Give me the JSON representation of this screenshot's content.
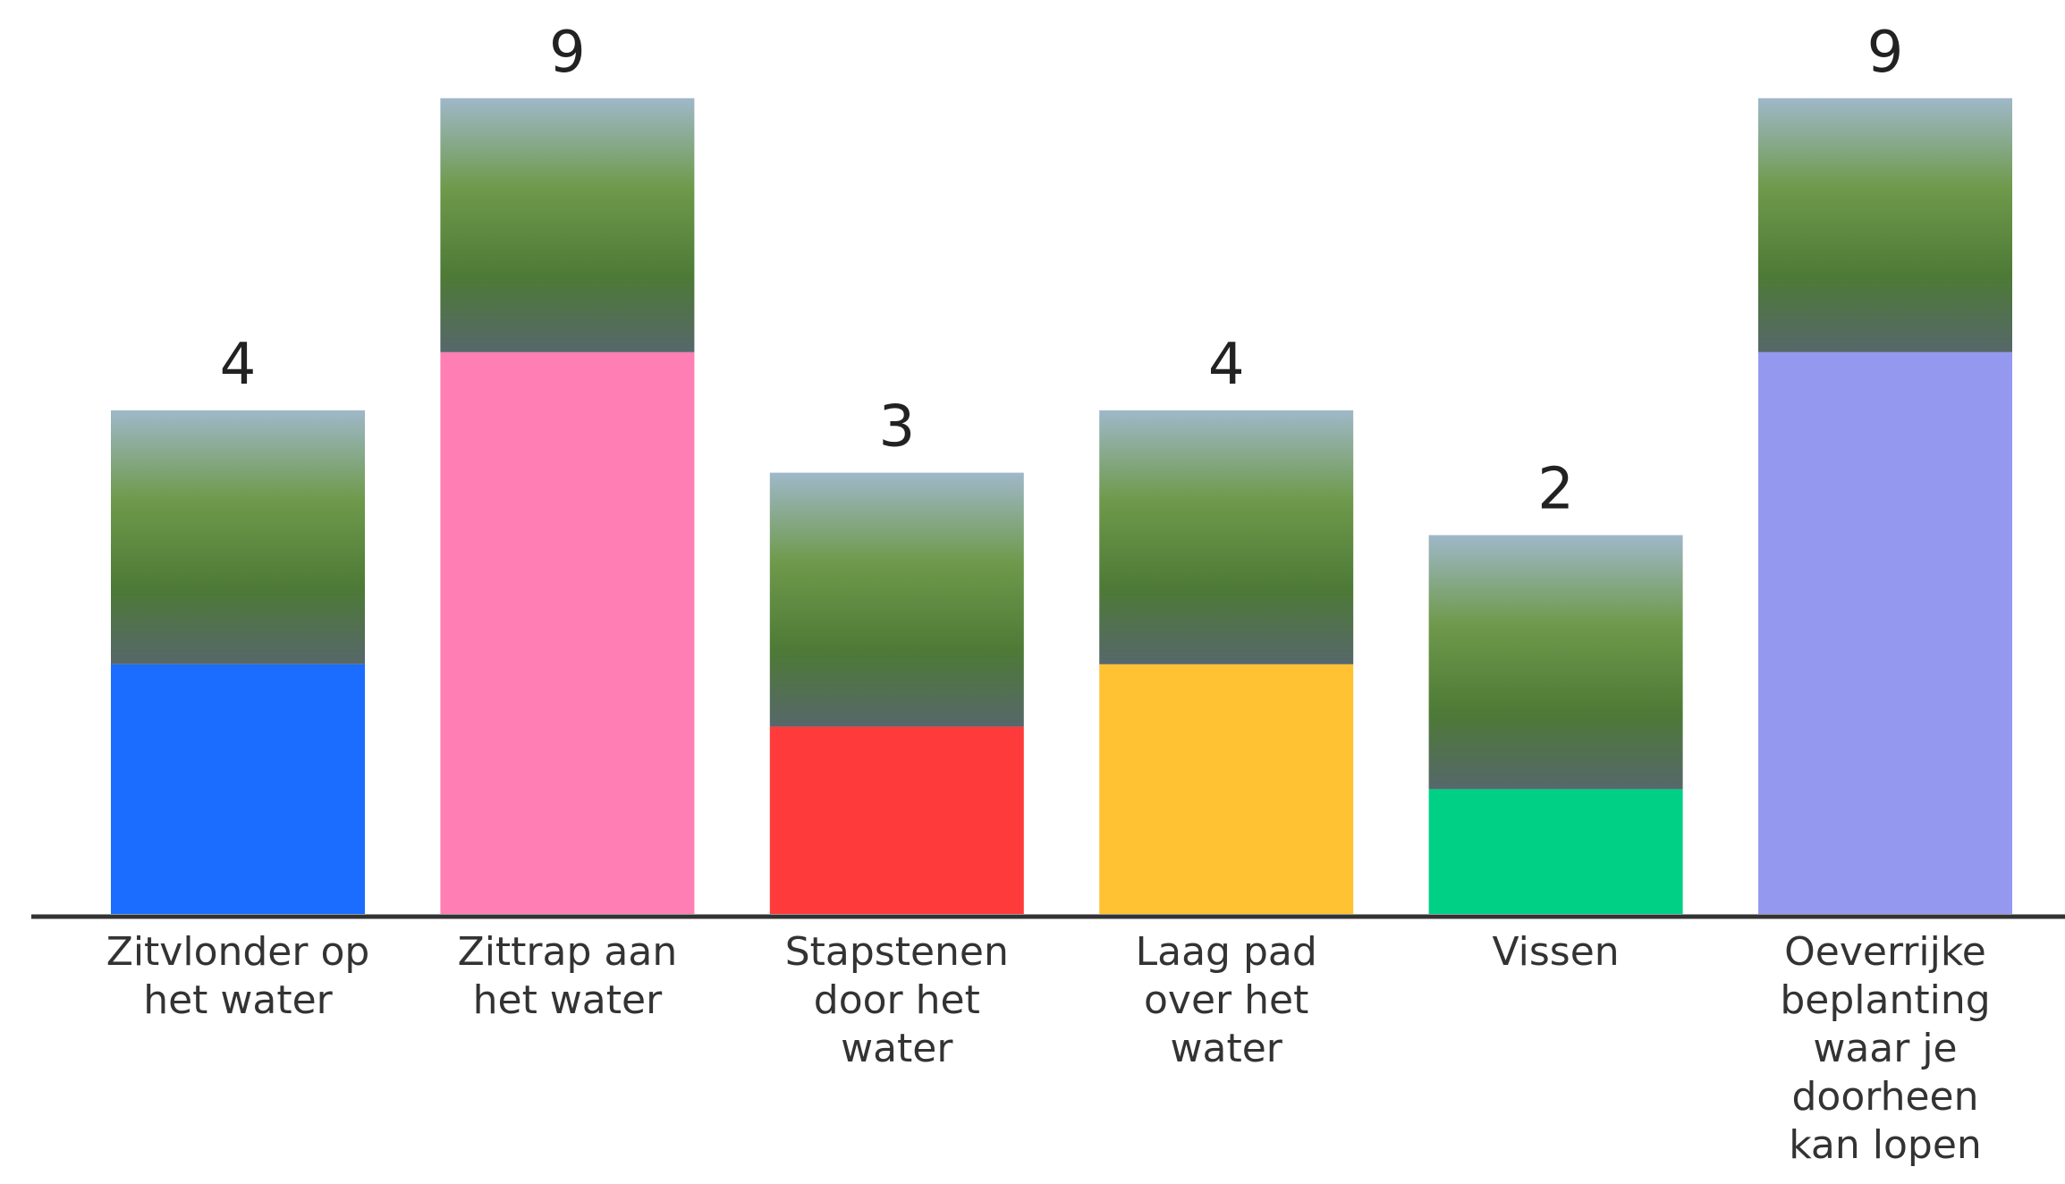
{
  "chart_data": {
    "type": "bar",
    "categories": [
      "Zitvlonder op het water",
      "Zittrap aan het water",
      "Stapstenen door het water",
      "Laag pad over het water",
      "Vissen",
      "Oeverrijke beplanting waar je doorheen kan lopen"
    ],
    "values": [
      4,
      9,
      3,
      4,
      2,
      9
    ],
    "colors": [
      "#1a6dff",
      "#ff7eb3",
      "#ff3a3a",
      "#ffc233",
      "#00cf86",
      "#9598ef"
    ]
  }
}
